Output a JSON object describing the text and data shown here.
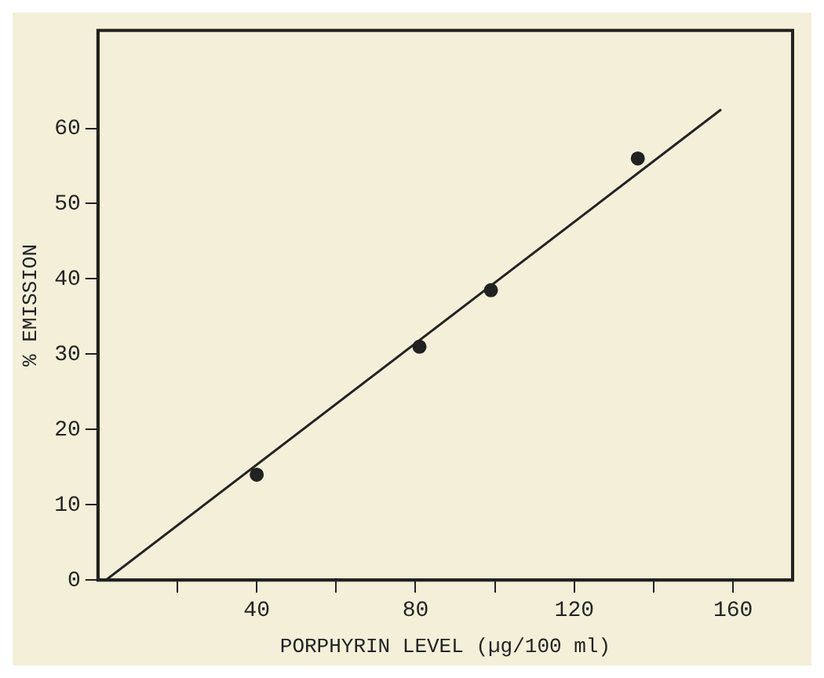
{
  "chart_data": {
    "type": "scatter",
    "xlabel": "PORPHYRIN LEVEL (µg/100 ml)",
    "ylabel": "% EMISSION",
    "xlim": [
      0,
      175
    ],
    "ylim": [
      0,
      73
    ],
    "xticks": [
      {
        "value": 20,
        "label": null
      },
      40,
      {
        "value": 60,
        "label": null
      },
      80,
      {
        "value": 100,
        "label": null
      },
      120,
      {
        "value": 140,
        "label": null
      },
      160
    ],
    "yticks": [
      0,
      10,
      20,
      30,
      40,
      50,
      60
    ],
    "grid": false,
    "legend": false,
    "marker": "circle",
    "series": [
      {
        "color": "#222222",
        "x": [
          40,
          81,
          99,
          136
        ],
        "values": [
          14,
          31,
          38.5,
          56
        ]
      },
      {
        "type": "line",
        "color": "#222222",
        "x": [
          2,
          157
        ],
        "values": [
          0,
          62.5
        ],
        "marker": "none"
      }
    ]
  }
}
